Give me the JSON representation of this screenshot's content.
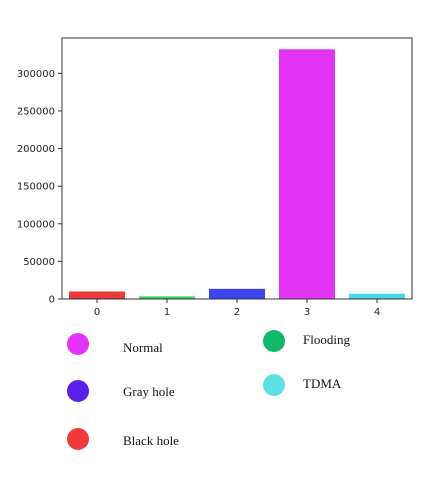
{
  "chart_data": {
    "type": "bar",
    "categories": [
      "0",
      "1",
      "2",
      "3",
      "4"
    ],
    "values": [
      10000,
      3500,
      13500,
      332000,
      7000
    ],
    "bar_colors": [
      "#ef3a3d",
      "#3ccf67",
      "#3c44ee",
      "#e233f5",
      "#44d8e8"
    ],
    "ylim": [
      0,
      347000
    ],
    "yticks": [
      0,
      50000,
      100000,
      150000,
      200000,
      250000,
      300000
    ],
    "ytick_labels": [
      "0",
      "50000",
      "100000",
      "150000",
      "200000",
      "250000",
      "300000"
    ],
    "grid": false
  },
  "legend": [
    {
      "label": "Normal",
      "color": "#e233f5"
    },
    {
      "label": "Gray hole",
      "color": "#5a1fe8"
    },
    {
      "label": "Black hole",
      "color": "#f33a3a"
    },
    {
      "label": "Flooding",
      "color": "#12b86a"
    },
    {
      "label": "TDMA",
      "color": "#5ee0e6"
    }
  ]
}
